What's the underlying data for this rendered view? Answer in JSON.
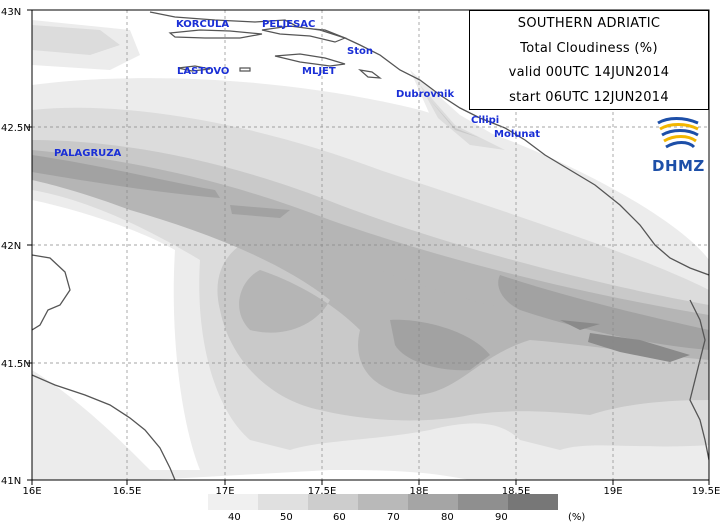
{
  "info": {
    "title": "SOUTHERN ADRIATIC",
    "variable": "Total Cloudiness (%)",
    "valid": "valid 00UTC 14JUN2014",
    "start": "start 06UTC 12JUN2014"
  },
  "logo": {
    "text": "DHMZ",
    "colors": [
      "#1d4fa8",
      "#f2b600"
    ]
  },
  "axes": {
    "lon_ticks": [
      "16E",
      "16.5E",
      "17E",
      "17.5E",
      "18E",
      "18.5E",
      "19E",
      "19.5E"
    ],
    "lat_ticks": [
      "43N",
      "42.5N",
      "42N",
      "41.5N",
      "41N"
    ],
    "lon_range": [
      16,
      19.5
    ],
    "lat_range": [
      41,
      43
    ],
    "grid": "dashed"
  },
  "places": [
    "KORCULA",
    "PELJESAC",
    "Ston",
    "LASTOVO",
    "MLJET",
    "Dubrovnik",
    "Cilipi",
    "Molunat",
    "PALAGRUZA"
  ],
  "legend": {
    "levels": [
      "40",
      "50",
      "60",
      "70",
      "80",
      "90"
    ],
    "unit": "(%)",
    "colors": [
      "#f0f0f0",
      "#e0e0e0",
      "#cdcdcd",
      "#b9b9b9",
      "#a5a5a5",
      "#8f8f8f",
      "#777777"
    ]
  }
}
